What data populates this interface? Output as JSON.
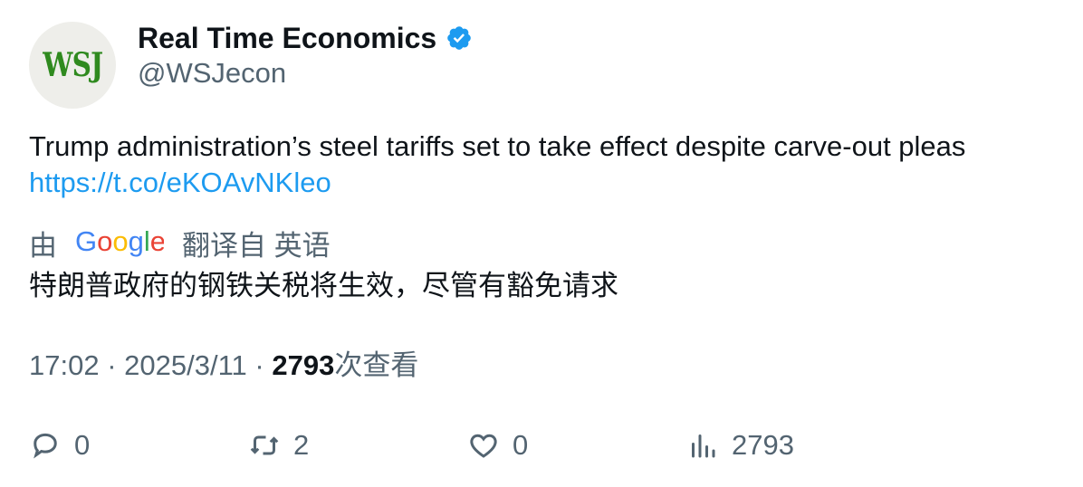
{
  "author": {
    "avatar_text": "WSJ",
    "name": "Real Time Economics",
    "handle": "@WSJecon"
  },
  "tweet": {
    "text": "Trump administration’s steel tariffs set to take effect despite carve-out pleas",
    "link": "https://t.co/eKOAvNKleo"
  },
  "translation": {
    "prefix": "由",
    "provider": "Google",
    "suffix": "翻译自 英语",
    "text": "特朗普政府的钢铁关税将生效，尽管有豁免请求"
  },
  "meta": {
    "time": "17:02",
    "separator": "·",
    "date": "2025/3/11",
    "views": "2793",
    "views_label": "次查看"
  },
  "actions": {
    "reply_count": "0",
    "retweet_count": "2",
    "like_count": "0",
    "views_count": "2793"
  },
  "colors": {
    "accent": "#1d9bf0",
    "secondary_text": "#536471",
    "primary_text": "#0f1419",
    "avatar_green": "#2f8a1f"
  }
}
